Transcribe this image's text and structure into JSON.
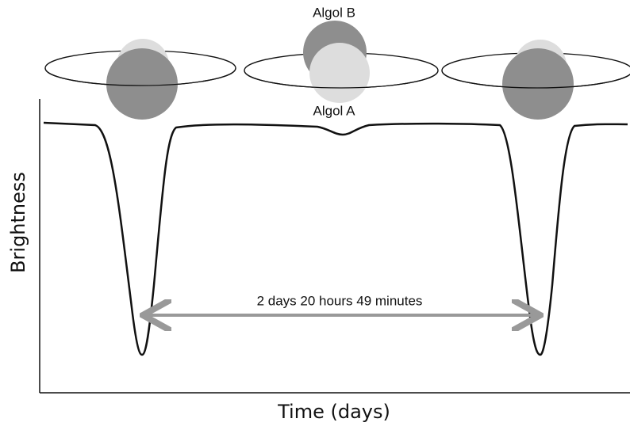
{
  "labels": {
    "star_b": "Algol B",
    "star_a": "Algol A",
    "y_axis": "Brightness",
    "x_axis": "Time (days)",
    "period": "2 days 20 hours 49 minutes"
  }
}
